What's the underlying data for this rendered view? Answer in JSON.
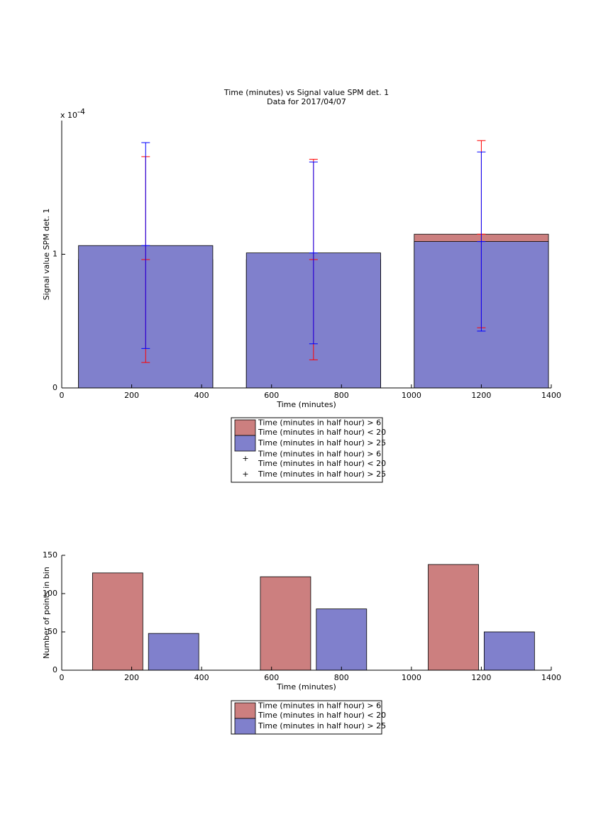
{
  "chart_data": [
    {
      "type": "bar",
      "barmode": "overlay",
      "title": "Time (minutes) vs Signal value SPM det. 1",
      "subtitle": "Data for 2017/04/07",
      "xlabel": "Time (minutes)",
      "ylabel": "Signal value SPM det. 1",
      "y_multiplier": {
        "base": "x 10",
        "exponent": -4
      },
      "x": [
        240,
        720,
        1200
      ],
      "xlim": [
        0,
        1400
      ],
      "xticks": [
        0,
        200,
        400,
        600,
        800,
        1000,
        1200,
        1400
      ],
      "ylim": [
        0,
        2
      ],
      "yticks": [
        0,
        1
      ],
      "grid": false,
      "legend": "south-outside",
      "series": [
        {
          "name": "Time (minutes in half hour) > 6\nTime (minutes in half hour) < 20",
          "color": "#cc7f7f",
          "error_color": "#ff0000",
          "values": [
            0.96,
            0.96,
            1.15
          ],
          "errors": [
            0.77,
            0.75,
            0.7
          ]
        },
        {
          "name": "Time (minutes in half hour) > 25",
          "color": "#8080cc",
          "error_color": "#0000ff",
          "values": [
            1.065,
            1.01,
            1.095
          ],
          "errors": [
            0.77,
            0.68,
            0.67
          ]
        }
      ]
    },
    {
      "type": "bar",
      "barmode": "grouped",
      "xlabel": "Time (minutes)",
      "ylabel": "Number of points in bin",
      "x": [
        240,
        720,
        1200
      ],
      "xlim": [
        0,
        1400
      ],
      "xticks": [
        0,
        200,
        400,
        600,
        800,
        1000,
        1200,
        1400
      ],
      "ylim": [
        0,
        150
      ],
      "yticks": [
        0,
        50,
        100,
        150
      ],
      "grid": false,
      "legend": "south-outside",
      "series": [
        {
          "name": "Time (minutes in half hour) > 6\nTime (minutes in half hour) < 20",
          "color": "#cc7f7f",
          "values": [
            127,
            122,
            138
          ]
        },
        {
          "name": "Time (minutes in half hour) > 25",
          "color": "#8080cc",
          "values": [
            48,
            80,
            50
          ]
        }
      ]
    }
  ]
}
